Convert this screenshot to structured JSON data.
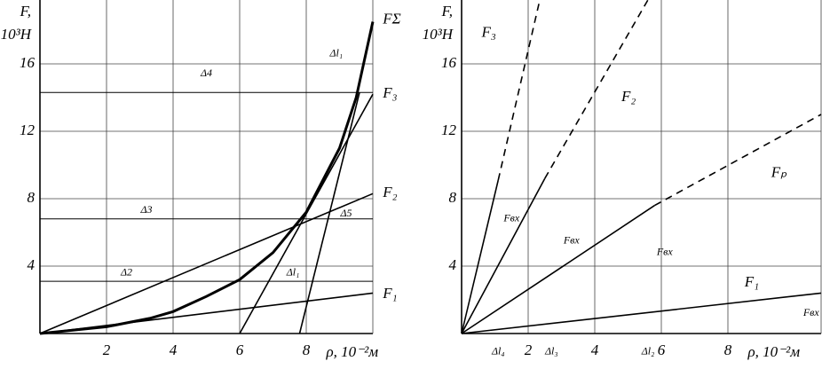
{
  "chart_data": [
    {
      "type": "line",
      "ylabel": [
        "F,",
        "10³H"
      ],
      "xlabel": "ρ, 10⁻²м",
      "xlim": [
        0,
        10
      ],
      "ylim": [
        0,
        19.8
      ],
      "xticks": [
        2,
        4,
        6,
        8
      ],
      "yticks": [
        4,
        8,
        12,
        16
      ],
      "grid": true,
      "series": [
        {
          "name": "FΣ",
          "color": "#000000",
          "x": [
            0,
            2,
            3.3,
            4,
            5,
            6,
            7,
            8,
            9,
            9.5,
            10
          ],
          "values": [
            0,
            0.4,
            0.9,
            1.3,
            2.2,
            3.2,
            4.8,
            7.2,
            11,
            14,
            18.5
          ],
          "line_styles": [
            "bold"
          ]
        },
        {
          "name": "F₃",
          "color": "#000000",
          "x": [
            6,
            10
          ],
          "values": [
            0,
            14.2
          ],
          "line_styles": [
            "solid"
          ]
        },
        {
          "name": "F₂",
          "color": "#000000",
          "x": [
            0,
            10
          ],
          "values": [
            0,
            8.3
          ],
          "line_styles": [
            "solid"
          ]
        },
        {
          "name": "F₁",
          "color": "#000000",
          "x": [
            0,
            10
          ],
          "values": [
            0,
            2.4
          ],
          "line_styles": [
            "solid"
          ]
        },
        {
          "color": "#000000",
          "x": [
            7.8,
            9.6
          ],
          "values": [
            0,
            14.3
          ],
          "line_styles": [
            "solid"
          ]
        }
      ],
      "annotations": [
        "Δ4",
        "Δ3",
        "Δ2",
        "Δl₁",
        "Δl₁",
        "Δ5"
      ]
    },
    {
      "type": "line",
      "ylabel": [
        "F,",
        "10³H"
      ],
      "xlabel": "ρ, 10⁻²м",
      "xlim": [
        0,
        10.8
      ],
      "ylim": [
        0,
        19.8
      ],
      "xticks": [
        2,
        4,
        6,
        8
      ],
      "yticks": [
        4,
        8,
        12,
        16
      ],
      "grid": true,
      "series": [
        {
          "name": "F₃",
          "color": "#000000",
          "x": [
            0,
            1.1,
            2.35
          ],
          "values": [
            0,
            9.1,
            19.8
          ],
          "line_styles": [
            "solid",
            "dashed"
          ]
        },
        {
          "name": "F₂",
          "color": "#000000",
          "x": [
            0,
            2.5,
            5.6
          ],
          "values": [
            0,
            9.2,
            19.8
          ],
          "line_styles": [
            "solid",
            "dashed"
          ]
        },
        {
          "name": "Fₚ",
          "color": "#000000",
          "x": [
            0,
            5.8,
            10.8
          ],
          "values": [
            0,
            7.6,
            13
          ],
          "line_styles": [
            "solid",
            "dashed"
          ]
        },
        {
          "name": "F₁",
          "color": "#000000",
          "x": [
            0,
            10.8
          ],
          "values": [
            0,
            2.4
          ],
          "line_styles": [
            "solid"
          ]
        }
      ],
      "annotations": [
        "Δl₄",
        "Δl₃",
        "Δl₂",
        "Fвх",
        "Fвх",
        "Fвх",
        "Fвх"
      ]
    }
  ]
}
